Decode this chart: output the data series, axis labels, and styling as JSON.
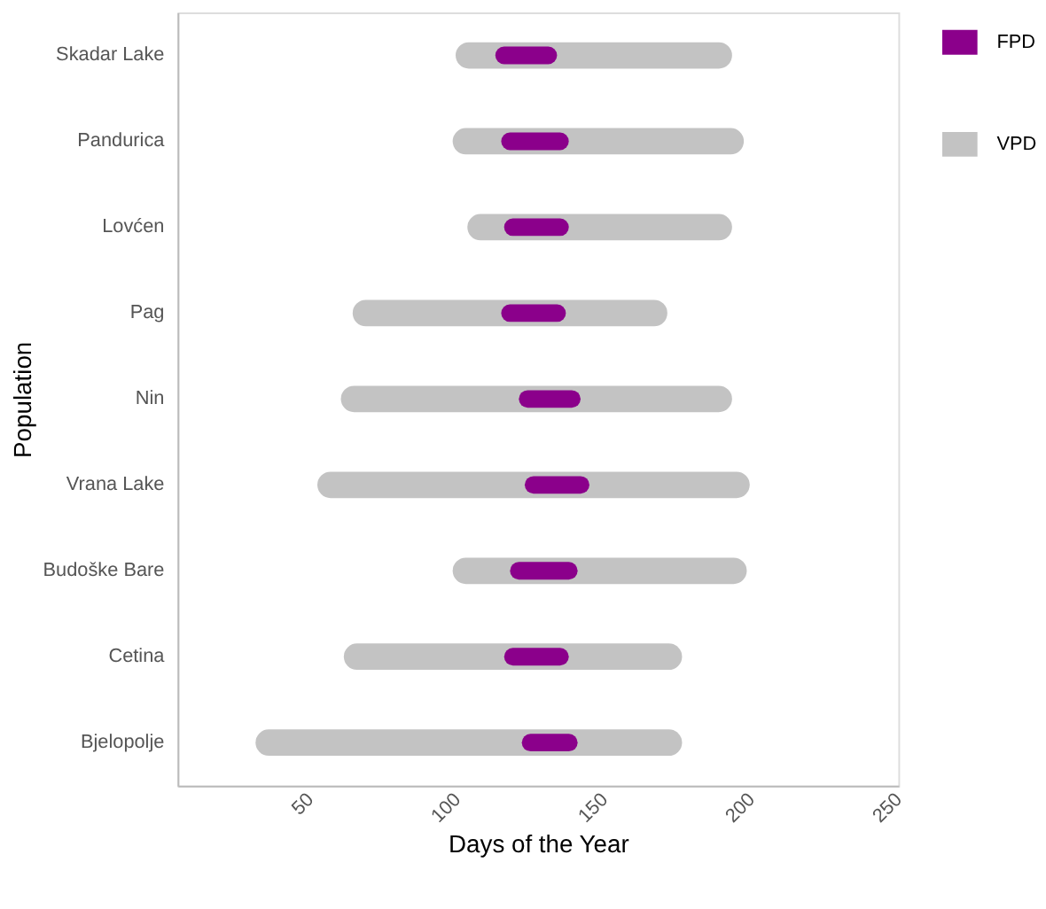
{
  "chart_data": {
    "type": "bar",
    "orientation": "horizontal",
    "xlabel": "Days of the Year",
    "ylabel": "Population",
    "categories": [
      "Skadar Lake",
      "Pandurica",
      "Lovćen",
      "Pag",
      "Nin",
      "Vrana Lake",
      "Budoške Bare",
      "Cetina",
      "Bjelopolje"
    ],
    "series": [
      {
        "name": "FPD",
        "color": "#8b008b",
        "base": [
          116,
          118,
          119,
          118,
          124,
          126,
          121,
          119,
          125
        ],
        "values": [
          15,
          17,
          16,
          16,
          15,
          16,
          17,
          16,
          13
        ]
      },
      {
        "name": "VPD",
        "color": "#c3c3c3",
        "base": [
          104,
          103,
          108,
          69,
          65,
          57,
          103,
          66,
          36
        ],
        "values": [
          85,
          90,
          81,
          98,
          124,
          138,
          91,
          106,
          136
        ]
      }
    ],
    "xlim": [
      5,
      250
    ],
    "xticks": [
      50,
      100,
      150,
      200,
      250
    ],
    "grid": false,
    "legend": "right"
  }
}
